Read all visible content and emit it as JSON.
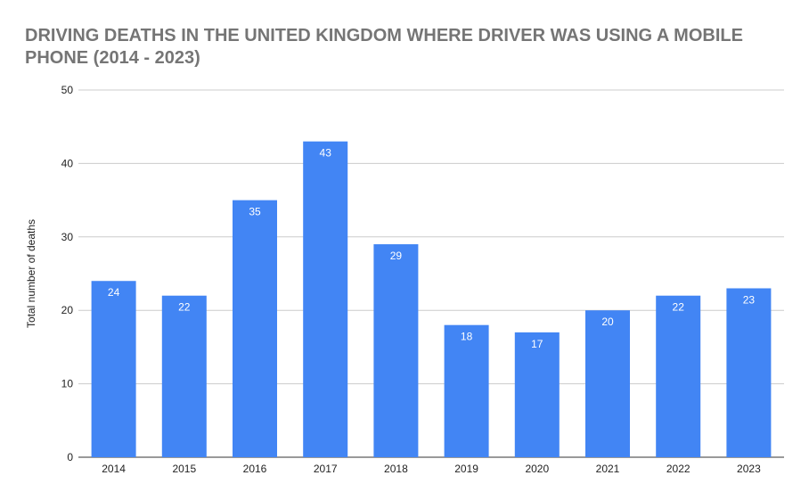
{
  "chart_data": {
    "type": "bar",
    "title": "DRIVING DEATHS IN THE UNITED KINGDOM WHERE DRIVER WAS USING A MOBILE PHONE (2014 - 2023)",
    "xlabel": "",
    "ylabel": "Total number of deaths",
    "categories": [
      "2014",
      "2015",
      "2016",
      "2017",
      "2018",
      "2019",
      "2020",
      "2021",
      "2022",
      "2023"
    ],
    "values": [
      24,
      22,
      35,
      43,
      29,
      18,
      17,
      20,
      22,
      23
    ],
    "ylim": [
      0,
      50
    ],
    "yticks": [
      0,
      10,
      20,
      30,
      40,
      50
    ],
    "grid": true,
    "legend": "none",
    "data_labels": true,
    "colors": {
      "bar": "#4285f4",
      "title": "#757575",
      "grid": "#cccccc"
    }
  }
}
